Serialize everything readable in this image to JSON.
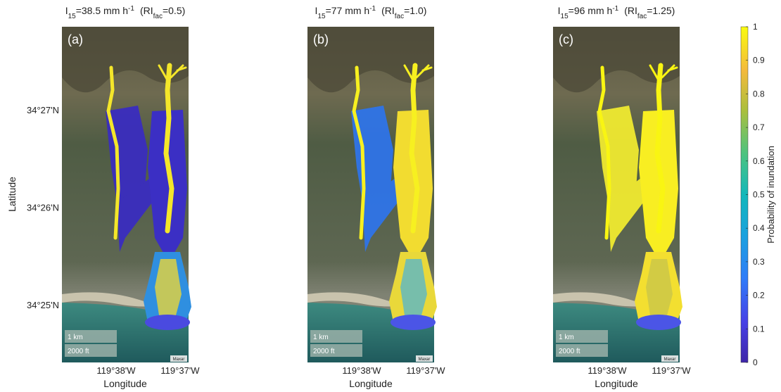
{
  "panels": [
    {
      "label": "(a)",
      "title": [
        "I",
        "15",
        "=38.5 mm h",
        "-1",
        "(RI",
        "fac",
        "=0.5)"
      ],
      "x_ticks": [
        "119°38'W",
        "119°37'W"
      ],
      "x_label": "Longitude",
      "scale_km": "1 km",
      "scale_ft": "2000 ft",
      "credit": "Maxar"
    },
    {
      "label": "(b)",
      "title": [
        "I",
        "15",
        "=77 mm h",
        "-1",
        "(RI",
        "fac",
        "=1.0)"
      ],
      "x_ticks": [
        "119°38'W",
        "119°37'W"
      ],
      "x_label": "Longitude",
      "scale_km": "1 km",
      "scale_ft": "2000 ft",
      "credit": "Maxar"
    },
    {
      "label": "(c)",
      "title": [
        "I",
        "15",
        "=96 mm h",
        "-1",
        "(RI",
        "fac",
        "=1.25)"
      ],
      "x_ticks": [
        "119°38'W",
        "119°37'W"
      ],
      "x_label": "Longitude",
      "scale_km": "1 km",
      "scale_ft": "2000 ft",
      "credit": "Maxar"
    }
  ],
  "y_label": "Latitude",
  "y_ticks": [
    "34°27'N",
    "34°26'N",
    "34°25'N"
  ],
  "colorbar": {
    "label": "Probability of inundation",
    "lim": [
      0,
      1
    ],
    "ticks": [
      0,
      0.1,
      0.2,
      0.3,
      0.4,
      0.5,
      0.6,
      0.7,
      0.8,
      0.9,
      1
    ]
  }
}
